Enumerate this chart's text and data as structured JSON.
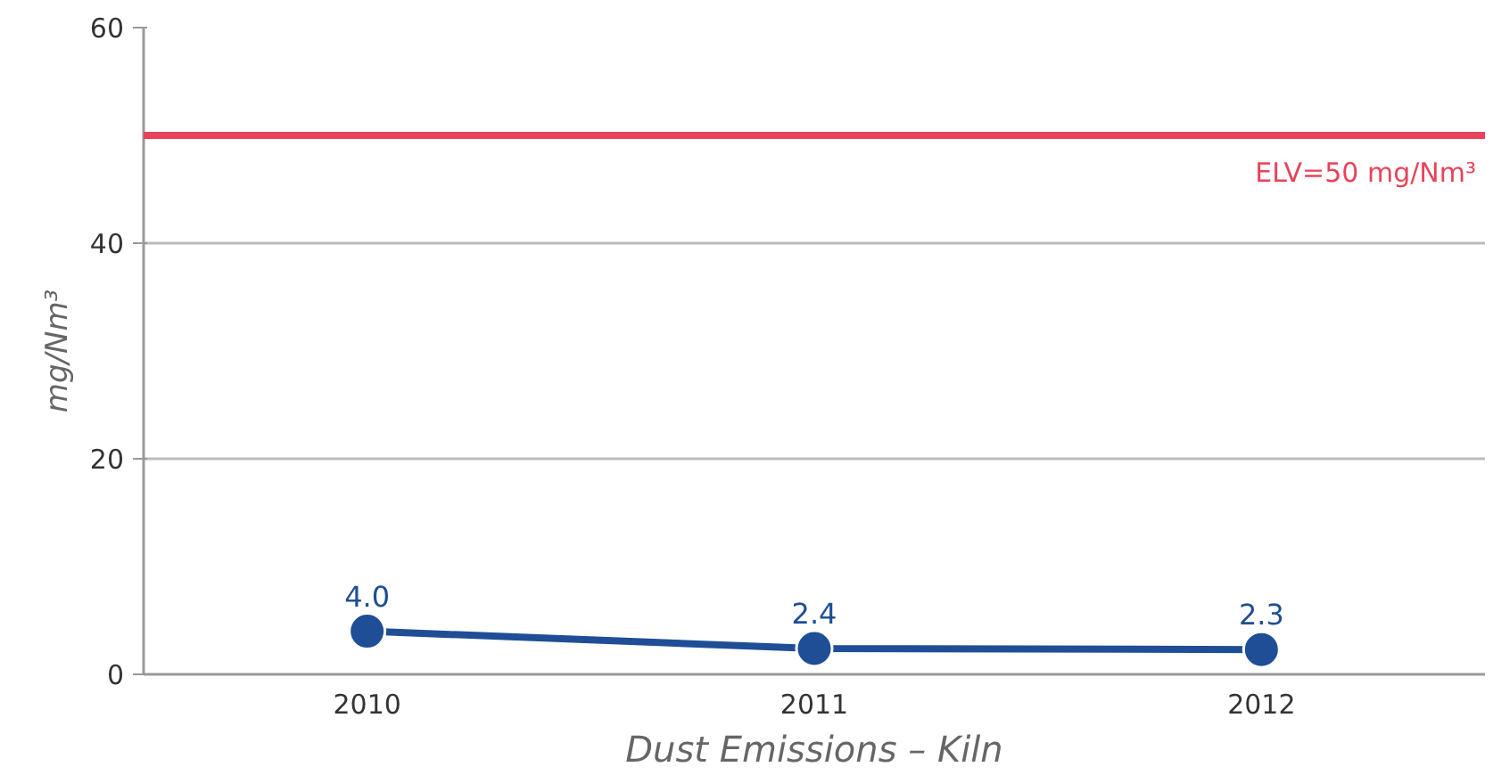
{
  "chart_data": {
    "type": "line",
    "xlabel": "Dust Emissions – Kiln",
    "ylabel": "mg/Nm³",
    "categories": [
      "2010",
      "2011",
      "2012"
    ],
    "series": [
      {
        "color": "#1f4e96",
        "values": [
          4.0,
          2.4,
          2.3
        ],
        "value_labels": [
          "4.0",
          "2.4",
          "2.3"
        ]
      }
    ],
    "ylim": [
      0,
      60
    ],
    "yticks": [
      0,
      20,
      40,
      60
    ],
    "grid": "y",
    "marker": "circle",
    "line_style": "solid",
    "ref_lines": [
      {
        "axis": "y",
        "value": 50,
        "label": "ELV=50 mg/Nm³",
        "color": "#e8435a",
        "line_style": "solid"
      }
    ]
  }
}
